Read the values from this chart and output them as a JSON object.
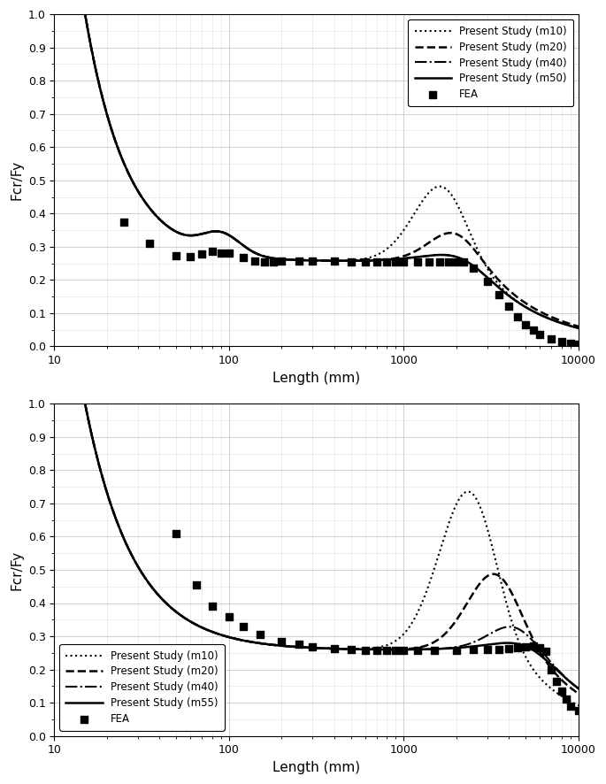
{
  "plot1": {
    "xlabel": "Length (mm)",
    "ylabel": "Fcr/Fy",
    "xlim": [
      10,
      10000
    ],
    "ylim": [
      0,
      1.0
    ],
    "legend_labels": [
      "Present Study (m10)",
      "Present Study (m20)",
      "Present Study (m40)",
      "Present Study (m50)",
      "FEA"
    ],
    "fea_x": [
      25,
      35,
      50,
      60,
      70,
      80,
      90,
      100,
      120,
      140,
      160,
      180,
      200,
      250,
      300,
      400,
      500,
      600,
      700,
      800,
      900,
      1000,
      1200,
      1400,
      1600,
      1800,
      2000,
      2200,
      2500,
      3000,
      3500,
      4000,
      4500,
      5000,
      5500,
      6000,
      7000,
      8000,
      9000,
      10000
    ],
    "fea_y": [
      0.375,
      0.31,
      0.273,
      0.27,
      0.278,
      0.285,
      0.282,
      0.282,
      0.267,
      0.258,
      0.255,
      0.255,
      0.257,
      0.258,
      0.258,
      0.257,
      0.255,
      0.255,
      0.255,
      0.255,
      0.255,
      0.255,
      0.255,
      0.255,
      0.255,
      0.255,
      0.255,
      0.255,
      0.235,
      0.195,
      0.155,
      0.12,
      0.09,
      0.065,
      0.048,
      0.036,
      0.022,
      0.015,
      0.01,
      0.007
    ]
  },
  "plot2": {
    "xlabel": "Length (mm)",
    "ylabel": "Fcr/Fy",
    "xlim": [
      10,
      10000
    ],
    "ylim": [
      0,
      1.0
    ],
    "legend_labels": [
      "Present Study (m10)",
      "Present Study (m20)",
      "Present Study (m40)",
      "Present Study (m55)",
      "FEA"
    ],
    "fea_x": [
      50,
      65,
      80,
      100,
      120,
      150,
      200,
      250,
      300,
      400,
      500,
      600,
      700,
      800,
      900,
      1000,
      1200,
      1500,
      2000,
      2500,
      3000,
      3500,
      4000,
      4500,
      5000,
      5500,
      6000,
      6500,
      7000,
      7500,
      8000,
      8500,
      9000,
      10000
    ],
    "fea_y": [
      0.608,
      0.455,
      0.39,
      0.36,
      0.33,
      0.305,
      0.285,
      0.275,
      0.268,
      0.262,
      0.26,
      0.258,
      0.257,
      0.257,
      0.257,
      0.257,
      0.257,
      0.257,
      0.258,
      0.26,
      0.26,
      0.26,
      0.262,
      0.265,
      0.268,
      0.272,
      0.265,
      0.255,
      0.2,
      0.165,
      0.135,
      0.11,
      0.09,
      0.075
    ]
  }
}
